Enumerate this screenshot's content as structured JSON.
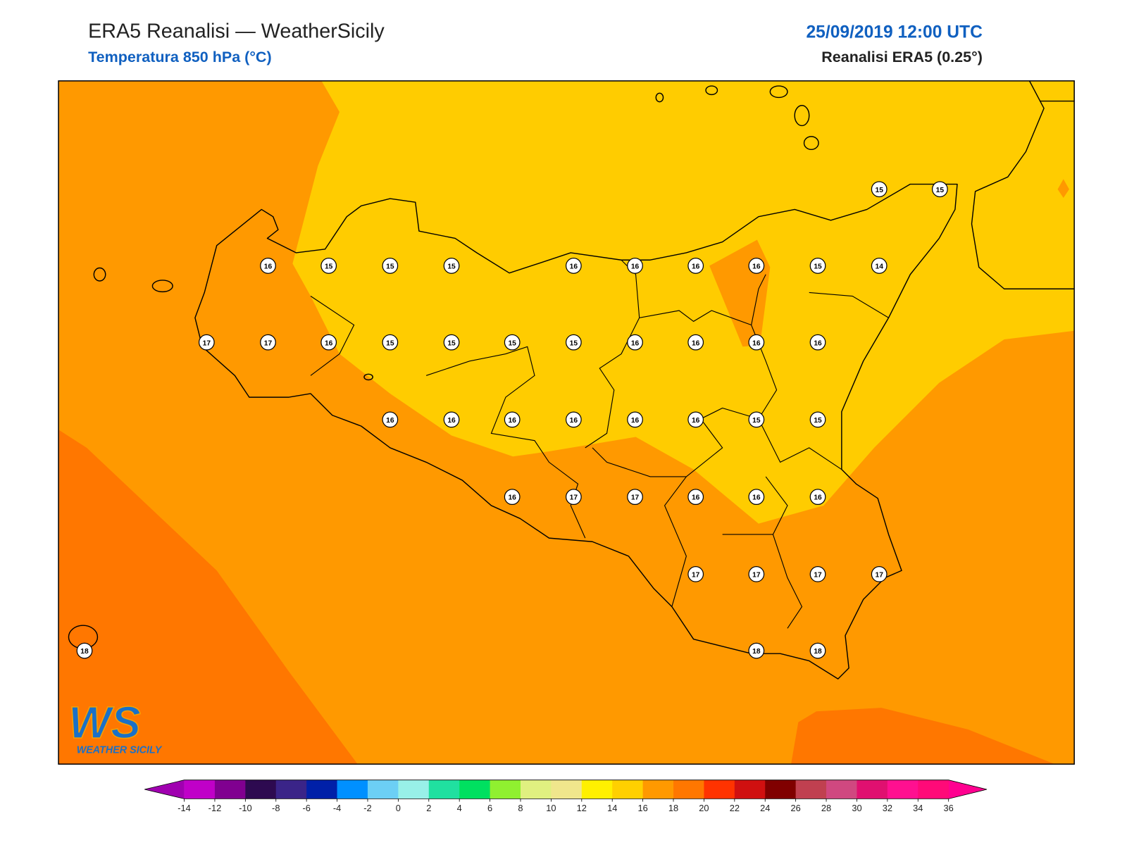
{
  "header": {
    "title": "ERA5 Reanalisi — WeatherSicily",
    "subtitle": "Temperatura 850 hPa (°C)",
    "datetime": "25/09/2019 12:00 UTC",
    "source": "Reanalisi ERA5 (0.25°)"
  },
  "map": {
    "stations": [
      15,
      15,
      16,
      15,
      15,
      15,
      16,
      16,
      16,
      16,
      15,
      14,
      17,
      17,
      16,
      15,
      15,
      15,
      15,
      16,
      16,
      16,
      16,
      16,
      16,
      16,
      16,
      16,
      16,
      15,
      15,
      16,
      17,
      17,
      16,
      16,
      16,
      17,
      17,
      17,
      17,
      18,
      18,
      18
    ]
  },
  "colorbar": {
    "ticks": [
      -14,
      -12,
      -10,
      -8,
      -6,
      -4,
      -2,
      0,
      2,
      4,
      6,
      8,
      10,
      12,
      14,
      16,
      18,
      20,
      22,
      24,
      26,
      28,
      30,
      32,
      34,
      36
    ],
    "colors": [
      "#c000c8",
      "#800090",
      "#2d0a50",
      "#3a2488",
      "#0020a8",
      "#0090ff",
      "#6ccff5",
      "#98f0e8",
      "#20e0a0",
      "#00e060",
      "#90f030",
      "#e0f080",
      "#f0e68c",
      "#fff000",
      "#ffd000",
      "#ff9900",
      "#ff7700",
      "#ff3300",
      "#d01010",
      "#800000",
      "#c04050",
      "#d04880",
      "#e01070",
      "#ff1090",
      "#ff0a78"
    ],
    "extend_colors": [
      "#a000b0",
      "#ff0090"
    ]
  },
  "logo": {
    "initials": "WS",
    "name": "WEATHER SICILY"
  }
}
